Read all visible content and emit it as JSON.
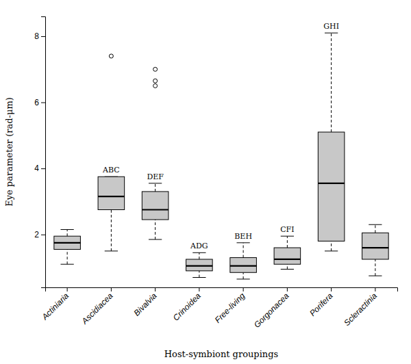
{
  "chart_data": {
    "type": "box",
    "categories": [
      "Actiniaria",
      "Ascidiacea",
      "Bivalvia",
      "Crinoidea",
      "Free-living",
      "Gorgonacea",
      "Porifera",
      "Scleractinia"
    ],
    "boxes": [
      {
        "median": 1.75,
        "q1": 1.55,
        "q3": 1.95,
        "whislo": 1.1,
        "whishi": 2.15,
        "fliers": []
      },
      {
        "median": 3.15,
        "q1": 2.75,
        "q3": 3.75,
        "whislo": 1.5,
        "whishi": 3.75,
        "fliers": [
          7.4
        ]
      },
      {
        "median": 2.75,
        "q1": 2.45,
        "q3": 3.3,
        "whislo": 1.85,
        "whishi": 3.55,
        "fliers": [
          6.5,
          6.65,
          7.0
        ]
      },
      {
        "median": 1.05,
        "q1": 0.9,
        "q3": 1.25,
        "whislo": 0.7,
        "whishi": 1.45,
        "fliers": []
      },
      {
        "median": 1.05,
        "q1": 0.85,
        "q3": 1.3,
        "whislo": 0.65,
        "whishi": 1.75,
        "fliers": []
      },
      {
        "median": 1.25,
        "q1": 1.1,
        "q3": 1.6,
        "whislo": 0.95,
        "whishi": 1.95,
        "fliers": []
      },
      {
        "median": 3.55,
        "q1": 1.8,
        "q3": 5.1,
        "whislo": 1.5,
        "whishi": 8.1,
        "fliers": []
      },
      {
        "median": 1.6,
        "q1": 1.25,
        "q3": 2.05,
        "whislo": 0.75,
        "whishi": 2.3,
        "fliers": []
      }
    ],
    "color": "#c8c8c8",
    "marker": "circle",
    "xlabel": "Host-symbiont groupings",
    "ylabel": "Eye parameter (rad-μm)",
    "ylim": [
      0.4,
      8.6
    ],
    "yticks": [
      2,
      4,
      6,
      8
    ],
    "grid": false,
    "annotations": [
      {
        "text": "ABC",
        "category": "Ascidiacea"
      },
      {
        "text": "DEF",
        "category": "Bivalvia"
      },
      {
        "text": "ADG",
        "category": "Crinoidea"
      },
      {
        "text": "BEH",
        "category": "Free-living"
      },
      {
        "text": "CFI",
        "category": "Gorgonacea"
      },
      {
        "text": "GHI",
        "category": "Porifera"
      }
    ]
  }
}
